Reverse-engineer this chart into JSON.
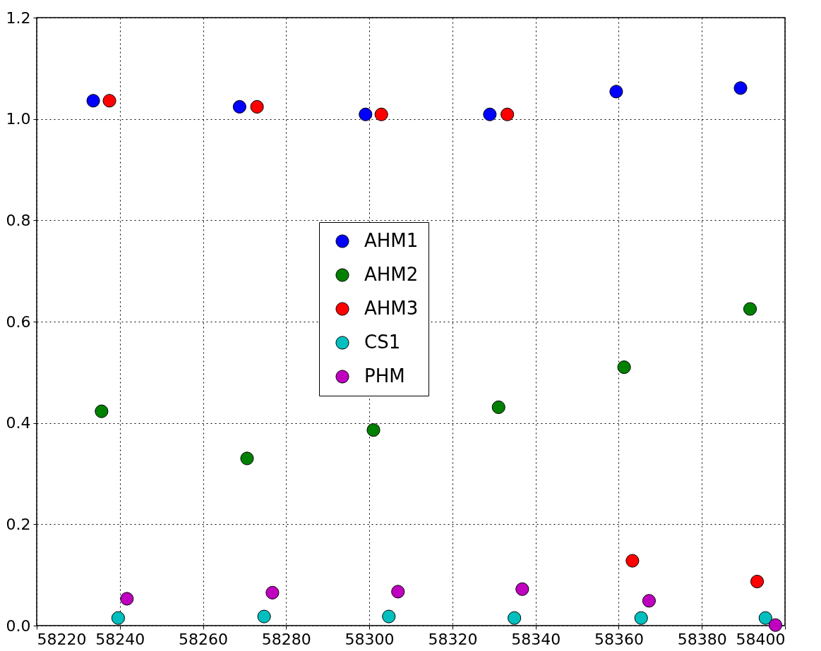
{
  "chart_data": {
    "type": "scatter",
    "marker": "circle",
    "grid": true,
    "legend": "center",
    "xlim": [
      58220,
      58400
    ],
    "xticks": [
      58220,
      58240,
      58260,
      58280,
      58300,
      58320,
      58340,
      58360,
      58380,
      58400
    ],
    "ylim": [
      0,
      1.2
    ],
    "yticks": [
      {
        "value": 0,
        "label": "0.0"
      },
      0.2,
      0.4,
      0.6,
      0.8,
      {
        "value": 1,
        "label": "1.0"
      },
      1.2
    ],
    "series": [
      {
        "name": "AHM1",
        "color": "#0000ff",
        "x": [
          58233.6,
          58268.8,
          58299.1,
          58329.0,
          58359.4,
          58389.3
        ],
        "values": [
          1.036,
          1.024,
          1.009,
          1.009,
          1.054,
          1.061
        ]
      },
      {
        "name": "AHM2",
        "color": "#008000",
        "x": [
          58235.6,
          58270.6,
          58301.0,
          58331.1,
          58361.3,
          58391.6
        ],
        "values": [
          0.423,
          0.33,
          0.386,
          0.431,
          0.51,
          0.625
        ]
      },
      {
        "name": "AHM3",
        "color": "#ff0000",
        "x": [
          58237.5,
          58273.0,
          58302.9,
          58333.2,
          58363.3,
          58393.3
        ],
        "values": [
          1.036,
          1.024,
          1.009,
          1.009,
          0.128,
          0.087
        ]
      },
      {
        "name": "CS1",
        "color": "#00bfbf",
        "x": [
          58239.6,
          58274.7,
          58304.7,
          58334.9,
          58365.4,
          58395.3
        ],
        "values": [
          0.015,
          0.018,
          0.018,
          0.015,
          0.015,
          0.015
        ]
      },
      {
        "name": "PHM",
        "color": "#bf00bf",
        "x": [
          58241.7,
          58276.7,
          58306.9,
          58336.8,
          58367.3,
          58397.7
        ],
        "values": [
          0.053,
          0.065,
          0.067,
          0.072,
          0.049,
          0.001
        ]
      }
    ]
  }
}
